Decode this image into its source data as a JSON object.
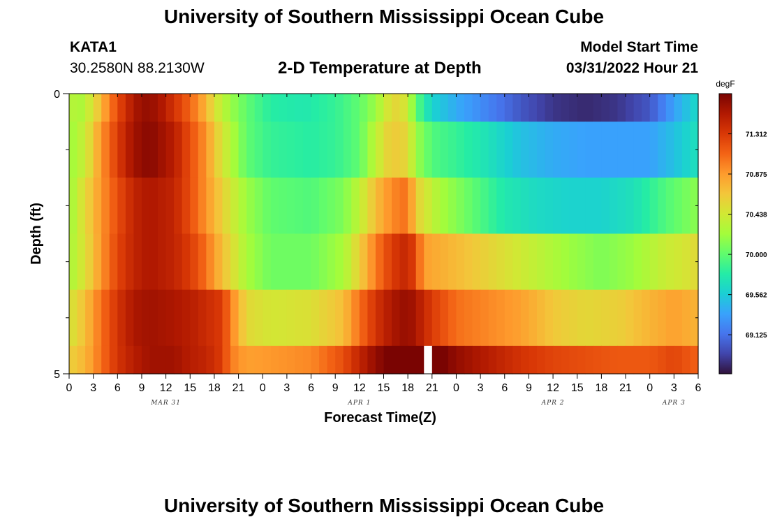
{
  "header": {
    "title": "University of Southern Mississippi Ocean Cube",
    "station_id": "KATA1",
    "station_coords": "30.2580N  88.2130W",
    "subtitle": "2-D Temperature at Depth",
    "model_label": "Model Start Time",
    "model_time": "03/31/2022 Hour 21"
  },
  "footer": {
    "title": "University of Southern Mississippi Ocean Cube"
  },
  "chart_data": {
    "type": "heatmap",
    "title": "2-D Temperature at Depth",
    "xlabel": "Forecast Time(Z)",
    "ylabel": "Depth (ft)",
    "x_start_hour": 0,
    "x_end_hour": 78,
    "x_tick_labels": [
      "0",
      "3",
      "6",
      "9",
      "12",
      "15",
      "18",
      "21",
      "0",
      "3",
      "6",
      "9",
      "12",
      "15",
      "18",
      "21",
      "0",
      "3",
      "6",
      "9",
      "12",
      "15",
      "18",
      "21",
      "0",
      "3",
      "6"
    ],
    "date_labels": [
      {
        "label": "MAR 31",
        "hour": 12
      },
      {
        "label": "APR 1",
        "hour": 36
      },
      {
        "label": "APR 2",
        "hour": 60
      },
      {
        "label": "APR 3",
        "hour": 75
      }
    ],
    "y_tick_labels": [
      "0",
      "5"
    ],
    "y_range": [
      0,
      5
    ],
    "missing_column_hour": 44,
    "colorbar": {
      "unit": "degF",
      "min": 68.7,
      "max": 71.75,
      "tick_values": [
        "71.312",
        "70.875",
        "70.438",
        "70.000",
        "69.562",
        "69.125"
      ],
      "colors": [
        "#30123b",
        "#4145ab",
        "#4675ed",
        "#39a2fc",
        "#1bcfd4",
        "#24eca6",
        "#61fc6c",
        "#a4fc3b",
        "#d1e834",
        "#f3c63a",
        "#fe9b2d",
        "#f36315",
        "#d93806",
        "#b11901",
        "#7a0402"
      ]
    },
    "layers": [
      {
        "depth_range": [
          0,
          0.5
        ],
        "knots": [
          [
            0,
            70.4
          ],
          [
            1,
            70.2
          ],
          [
            3,
            70.5
          ],
          [
            5,
            71.0
          ],
          [
            7,
            71.4
          ],
          [
            9,
            71.65
          ],
          [
            11,
            71.6
          ],
          [
            13,
            71.35
          ],
          [
            15,
            71.1
          ],
          [
            17,
            70.75
          ],
          [
            18,
            70.5
          ],
          [
            20,
            70.2
          ],
          [
            22,
            70.0
          ],
          [
            25,
            69.8
          ],
          [
            29,
            69.75
          ],
          [
            33,
            69.85
          ],
          [
            36,
            70.0
          ],
          [
            38,
            70.2
          ],
          [
            40,
            70.55
          ],
          [
            41,
            70.55
          ],
          [
            42,
            70.4
          ],
          [
            43,
            70.0
          ],
          [
            45,
            69.6
          ],
          [
            48,
            69.4
          ],
          [
            52,
            69.2
          ],
          [
            56,
            69.0
          ],
          [
            60,
            68.85
          ],
          [
            64,
            68.8
          ],
          [
            68,
            68.85
          ],
          [
            72,
            69.0
          ],
          [
            75,
            69.35
          ],
          [
            78,
            69.65
          ]
        ]
      },
      {
        "depth_range": [
          0.5,
          1.5
        ],
        "knots": [
          [
            0,
            70.2
          ],
          [
            2,
            70.4
          ],
          [
            4,
            70.9
          ],
          [
            6,
            71.3
          ],
          [
            8,
            71.6
          ],
          [
            10,
            71.7
          ],
          [
            13,
            71.5
          ],
          [
            15,
            71.2
          ],
          [
            17,
            70.9
          ],
          [
            18,
            70.65
          ],
          [
            20,
            70.3
          ],
          [
            22,
            70.0
          ],
          [
            25,
            69.85
          ],
          [
            30,
            69.8
          ],
          [
            33,
            69.85
          ],
          [
            36,
            70.0
          ],
          [
            38,
            70.35
          ],
          [
            40,
            70.65
          ],
          [
            42,
            70.55
          ],
          [
            43,
            70.2
          ],
          [
            45,
            69.95
          ],
          [
            48,
            69.85
          ],
          [
            52,
            69.7
          ],
          [
            56,
            69.5
          ],
          [
            60,
            69.4
          ],
          [
            64,
            69.35
          ],
          [
            68,
            69.35
          ],
          [
            72,
            69.35
          ],
          [
            75,
            69.5
          ],
          [
            78,
            69.7
          ]
        ]
      },
      {
        "depth_range": [
          1.5,
          2.5
        ],
        "knots": [
          [
            0,
            70.2
          ],
          [
            2,
            70.55
          ],
          [
            4,
            70.9
          ],
          [
            6,
            71.2
          ],
          [
            8,
            71.45
          ],
          [
            10,
            71.55
          ],
          [
            13,
            71.45
          ],
          [
            15,
            71.2
          ],
          [
            17,
            70.9
          ],
          [
            18,
            70.75
          ],
          [
            20,
            70.45
          ],
          [
            22,
            70.2
          ],
          [
            25,
            70.0
          ],
          [
            30,
            69.95
          ],
          [
            34,
            70.1
          ],
          [
            36,
            70.35
          ],
          [
            38,
            70.7
          ],
          [
            40,
            70.95
          ],
          [
            42,
            71.05
          ],
          [
            43,
            70.6
          ],
          [
            46,
            70.25
          ],
          [
            50,
            70.0
          ],
          [
            54,
            69.75
          ],
          [
            58,
            69.65
          ],
          [
            62,
            69.6
          ],
          [
            66,
            69.6
          ],
          [
            70,
            69.7
          ],
          [
            74,
            69.95
          ],
          [
            76,
            70.05
          ],
          [
            78,
            70.15
          ]
        ]
      },
      {
        "depth_range": [
          2.5,
          3.5
        ],
        "knots": [
          [
            0,
            70.25
          ],
          [
            2,
            70.5
          ],
          [
            4,
            70.9
          ],
          [
            6,
            71.25
          ],
          [
            8,
            71.45
          ],
          [
            10,
            71.55
          ],
          [
            13,
            71.45
          ],
          [
            15,
            71.3
          ],
          [
            17,
            71.05
          ],
          [
            18,
            70.85
          ],
          [
            20,
            70.55
          ],
          [
            22,
            70.25
          ],
          [
            25,
            70.05
          ],
          [
            30,
            70.05
          ],
          [
            34,
            70.25
          ],
          [
            36,
            70.6
          ],
          [
            38,
            71.0
          ],
          [
            40,
            71.3
          ],
          [
            42,
            71.45
          ],
          [
            43,
            71.2
          ],
          [
            44,
            70.85
          ],
          [
            47,
            70.75
          ],
          [
            50,
            70.65
          ],
          [
            54,
            70.5
          ],
          [
            58,
            70.35
          ],
          [
            62,
            70.2
          ],
          [
            66,
            70.1
          ],
          [
            70,
            70.2
          ],
          [
            74,
            70.4
          ],
          [
            76,
            70.45
          ],
          [
            78,
            70.55
          ]
        ]
      },
      {
        "depth_range": [
          3.5,
          4.5
        ],
        "knots": [
          [
            0,
            70.45
          ],
          [
            2,
            70.7
          ],
          [
            4,
            71.05
          ],
          [
            6,
            71.35
          ],
          [
            8,
            71.55
          ],
          [
            10,
            71.6
          ],
          [
            13,
            71.55
          ],
          [
            15,
            71.5
          ],
          [
            17,
            71.4
          ],
          [
            19,
            71.3
          ],
          [
            20,
            71.0
          ],
          [
            22,
            70.55
          ],
          [
            25,
            70.45
          ],
          [
            30,
            70.5
          ],
          [
            34,
            70.7
          ],
          [
            36,
            71.05
          ],
          [
            38,
            71.35
          ],
          [
            40,
            71.55
          ],
          [
            42,
            71.65
          ],
          [
            43,
            71.55
          ],
          [
            45,
            71.3
          ],
          [
            48,
            71.05
          ],
          [
            52,
            70.95
          ],
          [
            56,
            70.85
          ],
          [
            60,
            70.65
          ],
          [
            64,
            70.55
          ],
          [
            68,
            70.6
          ],
          [
            72,
            70.75
          ],
          [
            75,
            70.85
          ],
          [
            78,
            70.75
          ]
        ]
      },
      {
        "depth_range": [
          4.5,
          5
        ],
        "knots": [
          [
            0,
            70.6
          ],
          [
            2,
            70.75
          ],
          [
            4,
            71.05
          ],
          [
            6,
            71.35
          ],
          [
            8,
            71.5
          ],
          [
            10,
            71.6
          ],
          [
            13,
            71.6
          ],
          [
            15,
            71.5
          ],
          [
            17,
            71.45
          ],
          [
            19,
            71.3
          ],
          [
            20,
            71.0
          ],
          [
            22,
            70.85
          ],
          [
            26,
            70.9
          ],
          [
            30,
            70.95
          ],
          [
            34,
            71.2
          ],
          [
            36,
            71.45
          ],
          [
            38,
            71.65
          ],
          [
            40,
            71.8
          ],
          [
            42,
            71.85
          ],
          [
            45,
            71.85
          ],
          [
            48,
            71.65
          ],
          [
            52,
            71.5
          ],
          [
            56,
            71.35
          ],
          [
            60,
            71.25
          ],
          [
            64,
            71.2
          ],
          [
            68,
            71.15
          ],
          [
            72,
            71.15
          ],
          [
            75,
            71.25
          ],
          [
            78,
            71.1
          ]
        ]
      }
    ]
  }
}
